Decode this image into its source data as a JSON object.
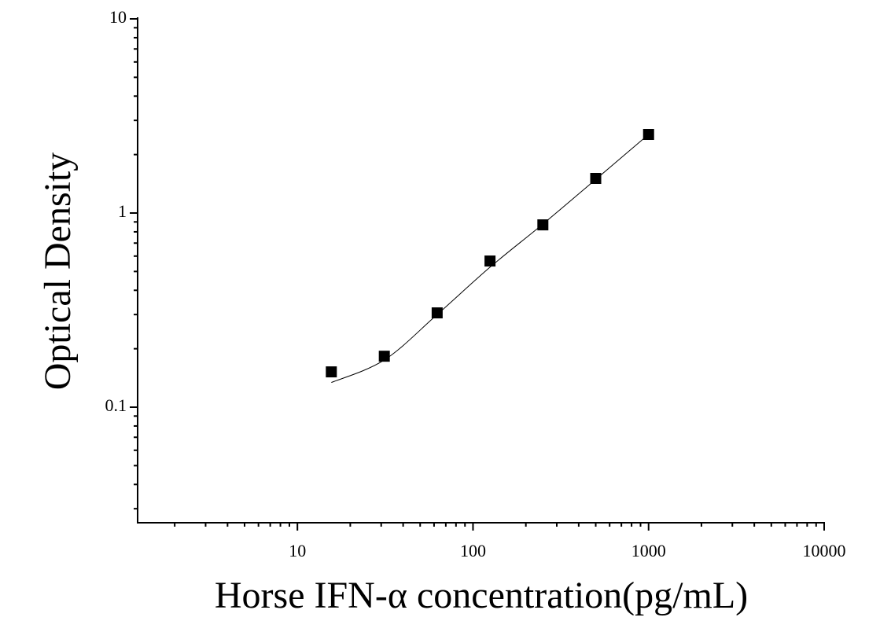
{
  "chart_data": {
    "type": "scatter",
    "xlabel": "Horse IFN-α concentration(pg/mL)",
    "ylabel": "Optical Density",
    "x_log": true,
    "y_log": true,
    "xlim": [
      1.23,
      10000
    ],
    "ylim": [
      0.0254,
      10
    ],
    "xticks": [
      10,
      100,
      1000,
      10000
    ],
    "yticks": [
      0.1,
      1,
      10
    ],
    "xminorticks": [
      2,
      3,
      4,
      5,
      6,
      7,
      8,
      9,
      20,
      30,
      40,
      50,
      60,
      70,
      80,
      90,
      200,
      300,
      400,
      500,
      600,
      700,
      800,
      900,
      2000,
      3000,
      4000,
      5000,
      6000,
      7000,
      8000,
      9000
    ],
    "yminorticks": [
      0.03,
      0.04,
      0.05,
      0.06,
      0.07,
      0.08,
      0.09,
      0.2,
      0.3,
      0.4,
      0.5,
      0.6,
      0.7,
      0.8,
      0.9,
      2,
      3,
      4,
      5,
      6,
      7,
      8,
      9
    ],
    "series": [
      {
        "color": "#000000",
        "marker": "square",
        "x": [
          15.6,
          31.25,
          62.5,
          125,
          250,
          500,
          1000
        ],
        "values": [
          0.152,
          0.183,
          0.306,
          0.566,
          0.869,
          1.507,
          2.54
        ]
      },
      {
        "color": "#000000",
        "marker": "line",
        "x": [
          15.6,
          31.25,
          62.5,
          125,
          250,
          500,
          1000
        ],
        "values": [
          0.134,
          0.175,
          0.3,
          0.526,
          0.877,
          1.49,
          2.54
        ]
      }
    ]
  }
}
